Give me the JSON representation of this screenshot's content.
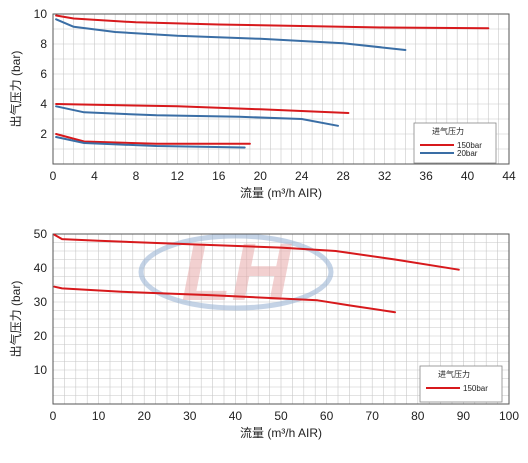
{
  "chart_data": [
    {
      "type": "line",
      "title": "",
      "xlabel": "流量 (m³/h AIR)",
      "ylabel": "出气压力 (bar)",
      "xlim": [
        0,
        44
      ],
      "ylim": [
        0,
        10
      ],
      "x_ticks": [
        0,
        4,
        8,
        12,
        16,
        20,
        24,
        28,
        32,
        36,
        40,
        44
      ],
      "y_ticks": [
        2,
        4,
        6,
        8,
        10
      ],
      "grid": true,
      "legend": {
        "title": "进气压力",
        "placement": "right",
        "entries": [
          {
            "label": "150bar",
            "color": "#d7191c"
          },
          {
            "label": "20bar",
            "color": "#3a6ea5"
          }
        ]
      },
      "series": [
        {
          "color": "#d7191c",
          "x": [
            0.3,
            2,
            8,
            16,
            24,
            32,
            42
          ],
          "y": [
            9.9,
            9.7,
            9.45,
            9.3,
            9.2,
            9.1,
            9.05
          ]
        },
        {
          "color": "#3a6ea5",
          "x": [
            0.3,
            2,
            6,
            12,
            20,
            28,
            34
          ],
          "y": [
            9.65,
            9.15,
            8.8,
            8.55,
            8.35,
            8.05,
            7.6
          ]
        },
        {
          "color": "#d7191c",
          "x": [
            0.3,
            4,
            12,
            20,
            28.5
          ],
          "y": [
            4.0,
            3.95,
            3.85,
            3.65,
            3.4
          ]
        },
        {
          "color": "#3a6ea5",
          "x": [
            0.3,
            3,
            10,
            18,
            24,
            27.5
          ],
          "y": [
            3.85,
            3.45,
            3.25,
            3.15,
            3.0,
            2.55
          ]
        },
        {
          "color": "#d7191c",
          "x": [
            0.3,
            3,
            10,
            19
          ],
          "y": [
            2.0,
            1.5,
            1.35,
            1.35
          ]
        },
        {
          "color": "#3a6ea5",
          "x": [
            0.3,
            3,
            10,
            18.5
          ],
          "y": [
            1.8,
            1.4,
            1.2,
            1.1
          ]
        }
      ]
    },
    {
      "type": "line",
      "title": "",
      "xlabel": "流量 (m³/h AIR)",
      "ylabel": "出气压力 (bar)",
      "xlim": [
        0,
        100
      ],
      "ylim": [
        0,
        50
      ],
      "x_ticks": [
        0,
        10,
        20,
        30,
        40,
        50,
        60,
        70,
        80,
        90,
        100
      ],
      "y_ticks": [
        10,
        20,
        30,
        40,
        50
      ],
      "grid": true,
      "legend": {
        "title": "进气压力",
        "placement": "bottom-right",
        "entries": [
          {
            "label": "150bar",
            "color": "#d7191c"
          }
        ]
      },
      "series": [
        {
          "color": "#d7191c",
          "x": [
            0.3,
            2,
            10,
            30,
            50,
            62,
            75,
            89
          ],
          "y": [
            49.8,
            48.5,
            48,
            47,
            46,
            45,
            42.5,
            39.5
          ]
        },
        {
          "color": "#d7191c",
          "x": [
            0.3,
            2,
            15,
            35,
            58,
            65,
            75
          ],
          "y": [
            34.5,
            34,
            33,
            32,
            30.5,
            29,
            27
          ]
        }
      ]
    }
  ],
  "watermark": {
    "text": "LH",
    "color": "#e8aaaa",
    "ring_color": "#9cb6d6"
  }
}
